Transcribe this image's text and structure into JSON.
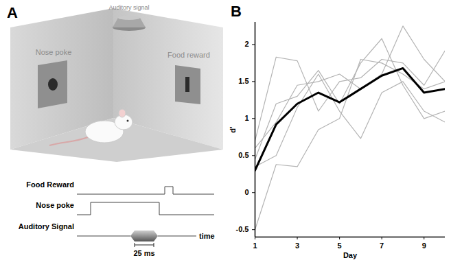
{
  "panel_a": {
    "label": "A",
    "room": {
      "speaker": "Auditory signal",
      "left_wall": "Nose poke",
      "right_wall": "Food reward"
    },
    "timeline": {
      "rows": [
        "Food Reward",
        "Nose poke",
        "Auditory Signal"
      ],
      "duration_label": "25 ms",
      "axis_label": "time"
    }
  },
  "panel_b": {
    "label": "B"
  },
  "chart_data": {
    "type": "line",
    "x": [
      1,
      2,
      3,
      4,
      5,
      6,
      7,
      8,
      9,
      10
    ],
    "series": [
      {
        "color": "#b3b3b3",
        "values": [
          -0.5,
          0.38,
          0.35,
          0.85,
          1.0,
          1.8,
          1.75,
          1.6,
          1.4,
          1.5
        ]
      },
      {
        "color": "#b3b3b3",
        "values": [
          0.7,
          1.83,
          1.78,
          1.1,
          1.5,
          1.55,
          1.8,
          1.75,
          1.45,
          1.92
        ]
      },
      {
        "color": "#b3b3b3",
        "values": [
          0.45,
          1.2,
          1.3,
          1.65,
          1.2,
          1.75,
          2.08,
          1.45,
          1.0,
          1.1
        ]
      },
      {
        "color": "#b3b3b3",
        "values": [
          0.6,
          0.95,
          1.45,
          1.5,
          1.6,
          1.4,
          1.6,
          2.25,
          1.8,
          1.5
        ]
      },
      {
        "color": "#b3b3b3",
        "values": [
          0.35,
          0.5,
          1.15,
          1.6,
          1.1,
          0.73,
          1.35,
          1.5,
          1.1,
          0.95
        ]
      },
      {
        "color": "#000000",
        "values": [
          0.3,
          0.92,
          1.2,
          1.35,
          1.22,
          1.4,
          1.58,
          1.68,
          1.35,
          1.4
        ]
      }
    ],
    "xlabel": "Day",
    "ylabel": "d'",
    "xlim": [
      1,
      10
    ],
    "ylim": [
      -0.6,
      2.3
    ],
    "xticks": [
      1,
      3,
      5,
      7,
      9
    ],
    "yticks": [
      -0.5,
      0,
      0.5,
      1,
      1.5,
      2
    ],
    "grid": false
  }
}
